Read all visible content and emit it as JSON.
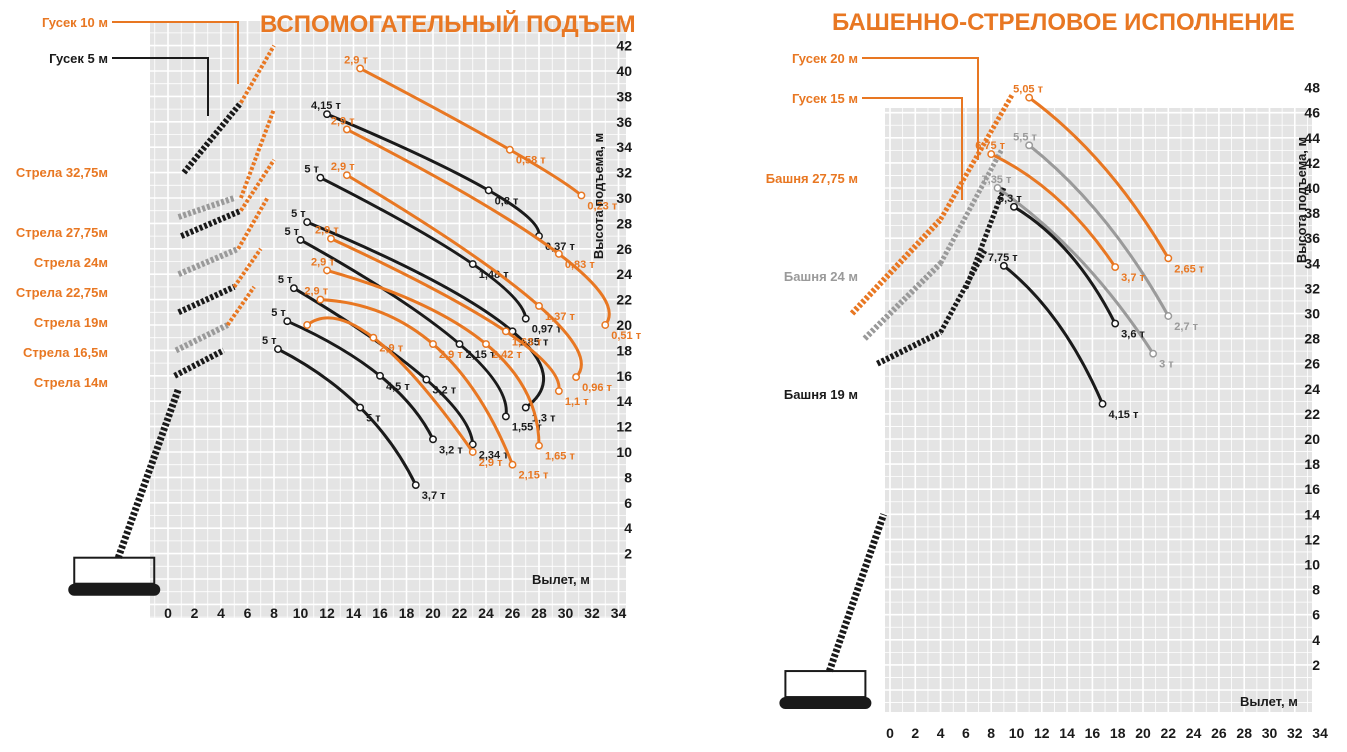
{
  "colors": {
    "orange": "#e87722",
    "black": "#1a1a1a",
    "gray": "#9a9a9a",
    "grid_bg": "#e4e4e4",
    "grid_line": "#ffffff"
  },
  "chart_data": [
    {
      "type": "line",
      "title": "ВСПОМОГАТЕЛЬНЫЙ ПОДЪЕМ",
      "xlabel": "Вылет, м",
      "ylabel": "Высота подъема, м",
      "xlim": [
        0,
        34
      ],
      "ylim": [
        0,
        42
      ],
      "xticks": [
        "0",
        "2",
        "4",
        "6",
        "8",
        "10",
        "12",
        "14",
        "16",
        "18",
        "20",
        "22",
        "24",
        "26",
        "28",
        "30",
        "32",
        "34"
      ],
      "yticks": [
        "2",
        "4",
        "6",
        "8",
        "10",
        "12",
        "14",
        "16",
        "18",
        "20",
        "22",
        "24",
        "26",
        "28",
        "30",
        "32",
        "34",
        "36",
        "38",
        "40",
        "42"
      ],
      "grid": true,
      "crane_labels": [
        {
          "text": "Гусек 10 м",
          "color": "orange"
        },
        {
          "text": "Гусек 5 м",
          "color": "black"
        },
        {
          "text": "Стрела 32,75м",
          "color": "orange"
        },
        {
          "text": "Стрела 27,75м",
          "color": "orange"
        },
        {
          "text": "Стрела 24м",
          "color": "orange"
        },
        {
          "text": "Стрела 22,75м",
          "color": "orange"
        },
        {
          "text": "Стрела 19м",
          "color": "orange"
        },
        {
          "text": "Стрела 16,5м",
          "color": "orange"
        },
        {
          "text": "Стрела 14м",
          "color": "orange"
        }
      ],
      "series": [
        {
          "color": "orange",
          "points": [
            [
              14.5,
              40.2
            ],
            [
              25.8,
              33.8
            ],
            [
              31.2,
              30.2
            ]
          ],
          "labels": [
            "2,9 т",
            "0,58 т",
            "0,23 т"
          ]
        },
        {
          "color": "black",
          "points": [
            [
              12.0,
              36.6
            ],
            [
              24.2,
              30.6
            ],
            [
              28.0,
              27.0
            ]
          ],
          "labels": [
            "4,15 т",
            "0,8 т",
            "0,37 т"
          ]
        },
        {
          "color": "orange",
          "points": [
            [
              13.5,
              35.4
            ],
            [
              29.5,
              25.6
            ],
            [
              33.0,
              20.0
            ]
          ],
          "labels": [
            "2,9 т",
            "0,83 т",
            "0,51 т"
          ]
        },
        {
          "color": "black",
          "points": [
            [
              11.5,
              31.6
            ],
            [
              23.0,
              24.8
            ],
            [
              27.0,
              20.5
            ]
          ],
          "labels": [
            "5 т",
            "1,48 т",
            "0,97 т"
          ]
        },
        {
          "color": "orange",
          "points": [
            [
              13.5,
              31.8
            ],
            [
              28.0,
              21.5
            ],
            [
              30.8,
              15.9
            ]
          ],
          "labels": [
            "2,9 т",
            "1,37 т",
            "0,96 т"
          ]
        },
        {
          "color": "black",
          "points": [
            [
              10.5,
              28.1
            ],
            [
              26.0,
              19.5
            ],
            [
              27.0,
              13.5
            ]
          ],
          "labels": [
            "5 т",
            "1,85 т",
            "1,3 т"
          ]
        },
        {
          "color": "orange",
          "points": [
            [
              12.3,
              26.8
            ],
            [
              25.5,
              19.5
            ],
            [
              29.5,
              14.8
            ]
          ],
          "labels": [
            "2,9 т",
            "1,63 т",
            "1,1 т"
          ]
        },
        {
          "color": "black",
          "points": [
            [
              10.0,
              26.7
            ],
            [
              22.0,
              18.5
            ],
            [
              25.5,
              12.8
            ]
          ],
          "labels": [
            "5 т",
            "2,15 т",
            "1,55 т"
          ]
        },
        {
          "color": "orange",
          "points": [
            [
              12.0,
              24.3
            ],
            [
              24.0,
              18.5
            ],
            [
              28.0,
              10.5
            ]
          ],
          "labels": [
            "2,9 т",
            "2,42 т",
            "1,65 т"
          ]
        },
        {
          "color": "black",
          "points": [
            [
              9.5,
              22.9
            ],
            [
              19.5,
              15.7
            ],
            [
              23.0,
              10.6
            ]
          ],
          "labels": [
            "5 т",
            "3,2 т",
            "2,34 т"
          ]
        },
        {
          "color": "orange",
          "points": [
            [
              11.5,
              22.0
            ],
            [
              20.0,
              18.5
            ],
            [
              26.0,
              9.0
            ]
          ],
          "labels": [
            "2,9 т",
            "2,9 т",
            "2,15 т"
          ]
        },
        {
          "color": "black",
          "points": [
            [
              9.0,
              20.3
            ],
            [
              16.0,
              16.0
            ],
            [
              20.0,
              11.0
            ]
          ],
          "labels": [
            "5 т",
            "4,5 т",
            "3,2 т"
          ]
        },
        {
          "color": "orange",
          "points": [
            [
              10.5,
              20.0
            ],
            [
              15.5,
              19.0
            ],
            [
              23.0,
              10.0
            ]
          ],
          "labels": [
            "",
            "2,9 т",
            "2,9 т"
          ]
        },
        {
          "color": "black",
          "points": [
            [
              8.3,
              18.1
            ],
            [
              14.5,
              13.5
            ],
            [
              18.7,
              7.4
            ]
          ],
          "labels": [
            "5 т",
            "5 т",
            "3,7 т"
          ]
        }
      ]
    },
    {
      "type": "line",
      "title": "БАШЕННО-СТРЕЛОВОЕ ИСПОЛНЕНИЕ",
      "xlabel": "Вылет, м",
      "ylabel": "Высота подъема, м",
      "xlim": [
        0,
        34
      ],
      "ylim": [
        0,
        48
      ],
      "xticks": [
        "0",
        "2",
        "4",
        "6",
        "8",
        "10",
        "12",
        "14",
        "16",
        "18",
        "20",
        "22",
        "24",
        "26",
        "28",
        "30",
        "32",
        "34"
      ],
      "yticks": [
        "2",
        "4",
        "6",
        "8",
        "10",
        "12",
        "14",
        "16",
        "18",
        "20",
        "22",
        "24",
        "26",
        "28",
        "30",
        "32",
        "34",
        "36",
        "38",
        "40",
        "42",
        "44",
        "46",
        "48"
      ],
      "grid": true,
      "crane_labels": [
        {
          "text": "Гусек 20 м",
          "color": "orange"
        },
        {
          "text": "Гусек 15 м",
          "color": "orange"
        },
        {
          "text": "Башня 27,75 м",
          "color": "orange"
        },
        {
          "text": "Башня 24 м",
          "color": "gray"
        },
        {
          "text": "Башня 19 м",
          "color": "black"
        }
      ],
      "series": [
        {
          "color": "orange",
          "points": [
            [
              11.0,
              47.2
            ],
            [
              22.0,
              34.4
            ]
          ],
          "labels": [
            "5,05 т",
            "2,65 т"
          ]
        },
        {
          "color": "gray",
          "points": [
            [
              11.0,
              43.4
            ],
            [
              22.0,
              29.8
            ]
          ],
          "labels": [
            "5,5 т",
            "2,7 т"
          ]
        },
        {
          "color": "orange",
          "points": [
            [
              8.0,
              42.7
            ],
            [
              17.8,
              33.7
            ]
          ],
          "labels": [
            "6,75 т",
            "3,7 т"
          ]
        },
        {
          "color": "gray",
          "points": [
            [
              8.5,
              40.0
            ],
            [
              20.8,
              26.8
            ]
          ],
          "labels": [
            "7,35 т",
            "3 т"
          ]
        },
        {
          "color": "black",
          "points": [
            [
              9.8,
              38.5
            ],
            [
              17.8,
              29.2
            ]
          ],
          "labels": [
            "6,3 т",
            "3,6 т"
          ]
        },
        {
          "color": "black",
          "points": [
            [
              9.0,
              33.8
            ],
            [
              16.8,
              22.8
            ]
          ],
          "labels": [
            "7,75 т",
            "4,15 т"
          ]
        }
      ]
    }
  ]
}
